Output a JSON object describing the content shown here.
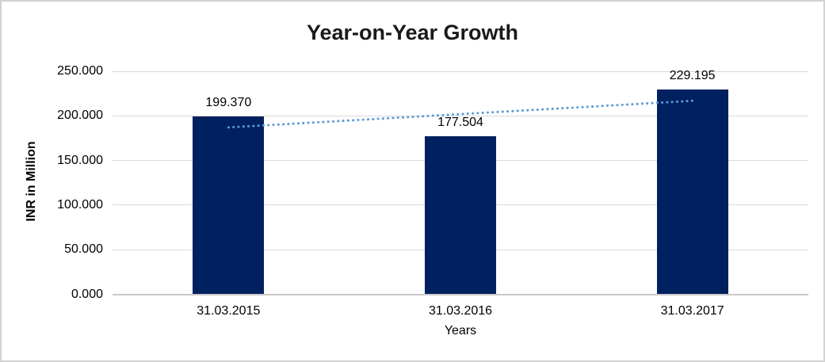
{
  "canvas": {
    "background": "#FFFFFF",
    "border_color": "#D2D2D2"
  },
  "chart_data": {
    "type": "bar",
    "title": "Year-on-Year Growth",
    "categories": [
      "31.03.2015",
      "31.03.2016",
      "31.03.2017"
    ],
    "values": [
      199.37,
      177.504,
      229.195
    ],
    "value_labels": [
      "199.370",
      "177.504",
      "229.195"
    ],
    "xlabel": "Years",
    "ylabel": "INR in Million",
    "ylim": [
      0,
      250
    ],
    "yticks": [
      0,
      50,
      100,
      150,
      200,
      250
    ],
    "ytick_labels": [
      "0.000",
      "50.000",
      "100.000",
      "150.000",
      "200.000",
      "250.000"
    ],
    "grid": true,
    "legend": "none",
    "bar_color": "#002060",
    "gridline_color": "#D9D9D9",
    "axis_line_color": "#C9C9C9",
    "text_color": "#000000",
    "title_color": "#1A1A1A",
    "trendline": {
      "type": "linear",
      "style": "dotted",
      "color": "#5B9BD5",
      "start_value": 187.1,
      "end_value": 216.9
    }
  }
}
